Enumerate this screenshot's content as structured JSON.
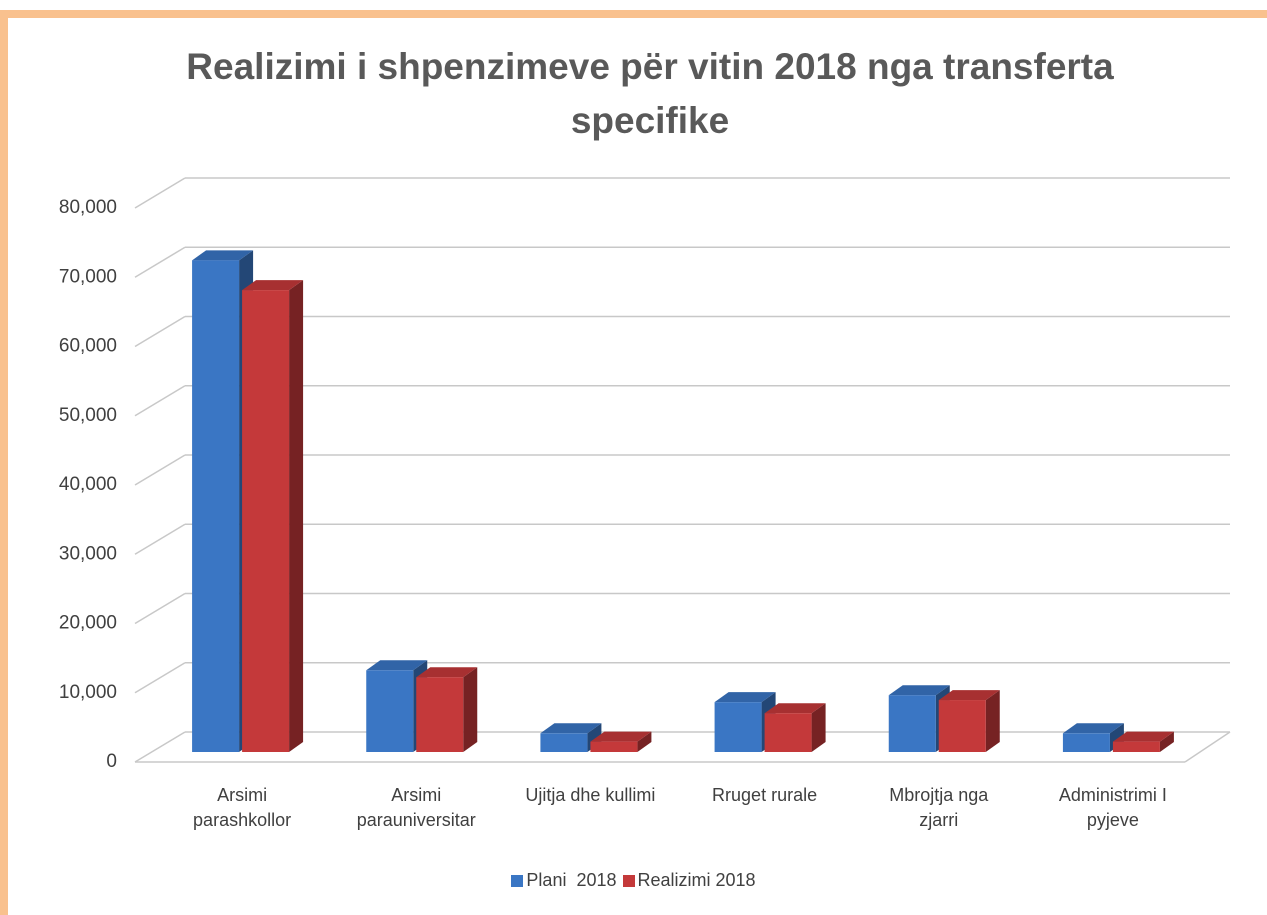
{
  "chart_data": {
    "type": "bar3d",
    "title": "Realizimi i shpenzimeve për vitin 2018 nga transferta specifike",
    "categories": [
      "Arsimi parashkollor",
      "Arsimi parauniversitar",
      "Ujitja dhe kullimi",
      "Rruget rurale",
      "Mbrojtja nga zjarri",
      "Administrimi I pyjeve"
    ],
    "series": [
      {
        "name": "Plani  2018",
        "color": "#3a76c4",
        "values": [
          71000,
          11800,
          2700,
          7200,
          8200,
          2700
        ]
      },
      {
        "name": "Realizimi 2018",
        "color": "#c4393a",
        "values": [
          66700,
          10800,
          1500,
          5600,
          7500,
          1500
        ]
      }
    ],
    "ylim": [
      0,
      80000
    ],
    "yticks": [
      0,
      {
        "value": 10000,
        "label": "10,000"
      },
      {
        "value": 20000,
        "label": "20,000"
      },
      {
        "value": 30000,
        "label": "30,000"
      },
      {
        "value": 40000,
        "label": "40,000"
      },
      {
        "value": 50000,
        "label": "50,000"
      },
      {
        "value": 60000,
        "label": "60,000"
      },
      {
        "value": 70000,
        "label": "70,000"
      },
      {
        "value": 80000,
        "label": "80,000"
      }
    ],
    "grid": true,
    "legend": "bottom"
  }
}
